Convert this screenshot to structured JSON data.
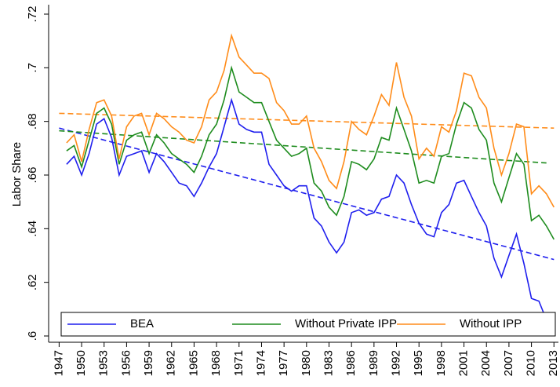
{
  "chart_data": {
    "type": "line",
    "y_label": "Labor Share",
    "x": [
      1948,
      1949,
      1950,
      1951,
      1952,
      1953,
      1954,
      1955,
      1956,
      1957,
      1958,
      1959,
      1960,
      1961,
      1962,
      1963,
      1964,
      1965,
      1966,
      1967,
      1968,
      1969,
      1970,
      1971,
      1972,
      1973,
      1974,
      1975,
      1976,
      1977,
      1978,
      1979,
      1980,
      1981,
      1982,
      1983,
      1984,
      1985,
      1986,
      1987,
      1988,
      1989,
      1990,
      1991,
      1992,
      1993,
      1994,
      1995,
      1996,
      1997,
      1998,
      1999,
      2000,
      2001,
      2002,
      2003,
      2004,
      2005,
      2006,
      2007,
      2008,
      2009,
      2010,
      2011,
      2012,
      2013
    ],
    "series": [
      {
        "name": "BEA",
        "color": "#1f1fee",
        "values": [
          0.664,
          0.667,
          0.66,
          0.668,
          0.679,
          0.681,
          0.674,
          0.66,
          0.667,
          0.668,
          0.669,
          0.661,
          0.668,
          0.665,
          0.661,
          0.657,
          0.656,
          0.652,
          0.657,
          0.663,
          0.668,
          0.678,
          0.688,
          0.679,
          0.677,
          0.676,
          0.676,
          0.664,
          0.66,
          0.656,
          0.654,
          0.656,
          0.656,
          0.644,
          0.641,
          0.635,
          0.631,
          0.635,
          0.646,
          0.647,
          0.645,
          0.646,
          0.651,
          0.652,
          0.66,
          0.657,
          0.649,
          0.642,
          0.638,
          0.637,
          0.646,
          0.649,
          0.657,
          0.658,
          0.652,
          0.646,
          0.641,
          0.629,
          0.622,
          0.63,
          0.638,
          0.627,
          0.614,
          0.613,
          0.606,
          0.604
        ],
        "trend": {
          "x": [
            1947,
            2013
          ],
          "values": [
            0.6775,
            0.6285
          ]
        }
      },
      {
        "name": "Without Private IPP",
        "color": "#1e8c1e",
        "values": [
          0.669,
          0.671,
          0.663,
          0.673,
          0.683,
          0.685,
          0.679,
          0.664,
          0.673,
          0.675,
          0.676,
          0.668,
          0.675,
          0.672,
          0.668,
          0.666,
          0.664,
          0.661,
          0.667,
          0.675,
          0.679,
          0.688,
          0.7,
          0.691,
          0.689,
          0.687,
          0.687,
          0.68,
          0.673,
          0.67,
          0.667,
          0.668,
          0.67,
          0.657,
          0.654,
          0.648,
          0.645,
          0.652,
          0.665,
          0.664,
          0.662,
          0.666,
          0.674,
          0.673,
          0.685,
          0.677,
          0.669,
          0.657,
          0.658,
          0.657,
          0.667,
          0.668,
          0.679,
          0.687,
          0.685,
          0.677,
          0.673,
          0.657,
          0.65,
          0.659,
          0.668,
          0.664,
          0.643,
          0.645,
          0.641,
          0.636
        ],
        "trend": {
          "x": [
            1947,
            2012
          ],
          "values": [
            0.6765,
            0.6645
          ]
        }
      },
      {
        "name": "Without IPP",
        "color": "#ff8c1a",
        "values": [
          0.672,
          0.675,
          0.665,
          0.677,
          0.687,
          0.688,
          0.682,
          0.666,
          0.678,
          0.682,
          0.683,
          0.675,
          0.683,
          0.681,
          0.678,
          0.676,
          0.673,
          0.672,
          0.678,
          0.688,
          0.691,
          0.699,
          0.712,
          0.704,
          0.701,
          0.698,
          0.698,
          0.696,
          0.687,
          0.684,
          0.679,
          0.679,
          0.682,
          0.67,
          0.665,
          0.658,
          0.655,
          0.665,
          0.68,
          0.677,
          0.675,
          0.682,
          0.69,
          0.686,
          0.702,
          0.689,
          0.682,
          0.666,
          0.67,
          0.667,
          0.678,
          0.676,
          0.684,
          0.698,
          0.697,
          0.689,
          0.685,
          0.67,
          0.66,
          0.668,
          0.679,
          0.678,
          0.653,
          0.656,
          0.653,
          0.648
        ],
        "trend": {
          "x": [
            1947,
            2013
          ],
          "values": [
            0.683,
            0.6775
          ]
        }
      }
    ],
    "xlim": [
      1945.6,
      2013.6
    ],
    "xticks": [
      1947,
      1950,
      1953,
      1956,
      1959,
      1962,
      1965,
      1968,
      1971,
      1974,
      1977,
      1980,
      1983,
      1986,
      1989,
      1992,
      1995,
      1998,
      2001,
      2004,
      2007,
      2010,
      2013
    ],
    "ylim": [
      0.6,
      0.72
    ],
    "yticks": [
      {
        "value": 0.6,
        "label": ".6"
      },
      {
        "value": 0.62,
        "label": ".62"
      },
      {
        "value": 0.64,
        "label": ".64"
      },
      {
        "value": 0.66,
        "label": ".66"
      },
      {
        "value": 0.68,
        "label": ".68"
      },
      {
        "value": 0.7,
        "label": ".7"
      },
      {
        "value": 0.72,
        "label": ".72"
      }
    ],
    "legend": "bottom"
  }
}
